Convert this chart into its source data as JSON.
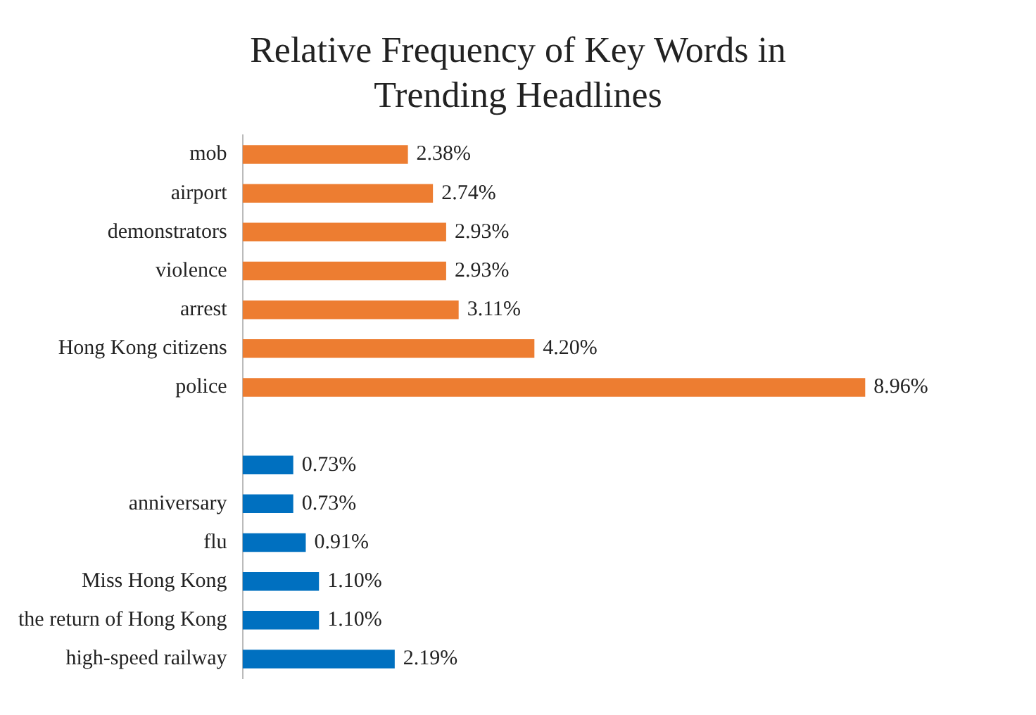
{
  "chart_data": {
    "type": "bar",
    "orientation": "horizontal",
    "title": "Relative Frequency of Key Words in Trending Headlines",
    "categories": [
      "mob",
      "airport",
      "demonstrators",
      "violence",
      "arrest",
      "Hong Kong citizens",
      "police",
      null,
      null,
      "anniversary",
      "flu",
      "Miss Hong Kong",
      "the return of Hong Kong",
      "high-speed railway"
    ],
    "values": [
      2.38,
      2.74,
      2.93,
      2.93,
      3.11,
      4.2,
      8.96,
      null,
      0.73,
      0.73,
      0.91,
      1.1,
      1.1,
      2.19
    ],
    "colors": [
      "#ed7d31",
      "#ed7d31",
      "#ed7d31",
      "#ed7d31",
      "#ed7d31",
      "#ed7d31",
      "#ed7d31",
      null,
      "#0070c0",
      "#0070c0",
      "#0070c0",
      "#0070c0",
      "#0070c0",
      "#0070c0"
    ],
    "value_labels": [
      "2.38%",
      "2.74%",
      "2.93%",
      "2.93%",
      "3.11%",
      "4.20%",
      "8.96%",
      null,
      "0.73%",
      "0.73%",
      "0.91%",
      "1.10%",
      "1.10%",
      "2.19%"
    ],
    "grid": false,
    "legend": false
  }
}
